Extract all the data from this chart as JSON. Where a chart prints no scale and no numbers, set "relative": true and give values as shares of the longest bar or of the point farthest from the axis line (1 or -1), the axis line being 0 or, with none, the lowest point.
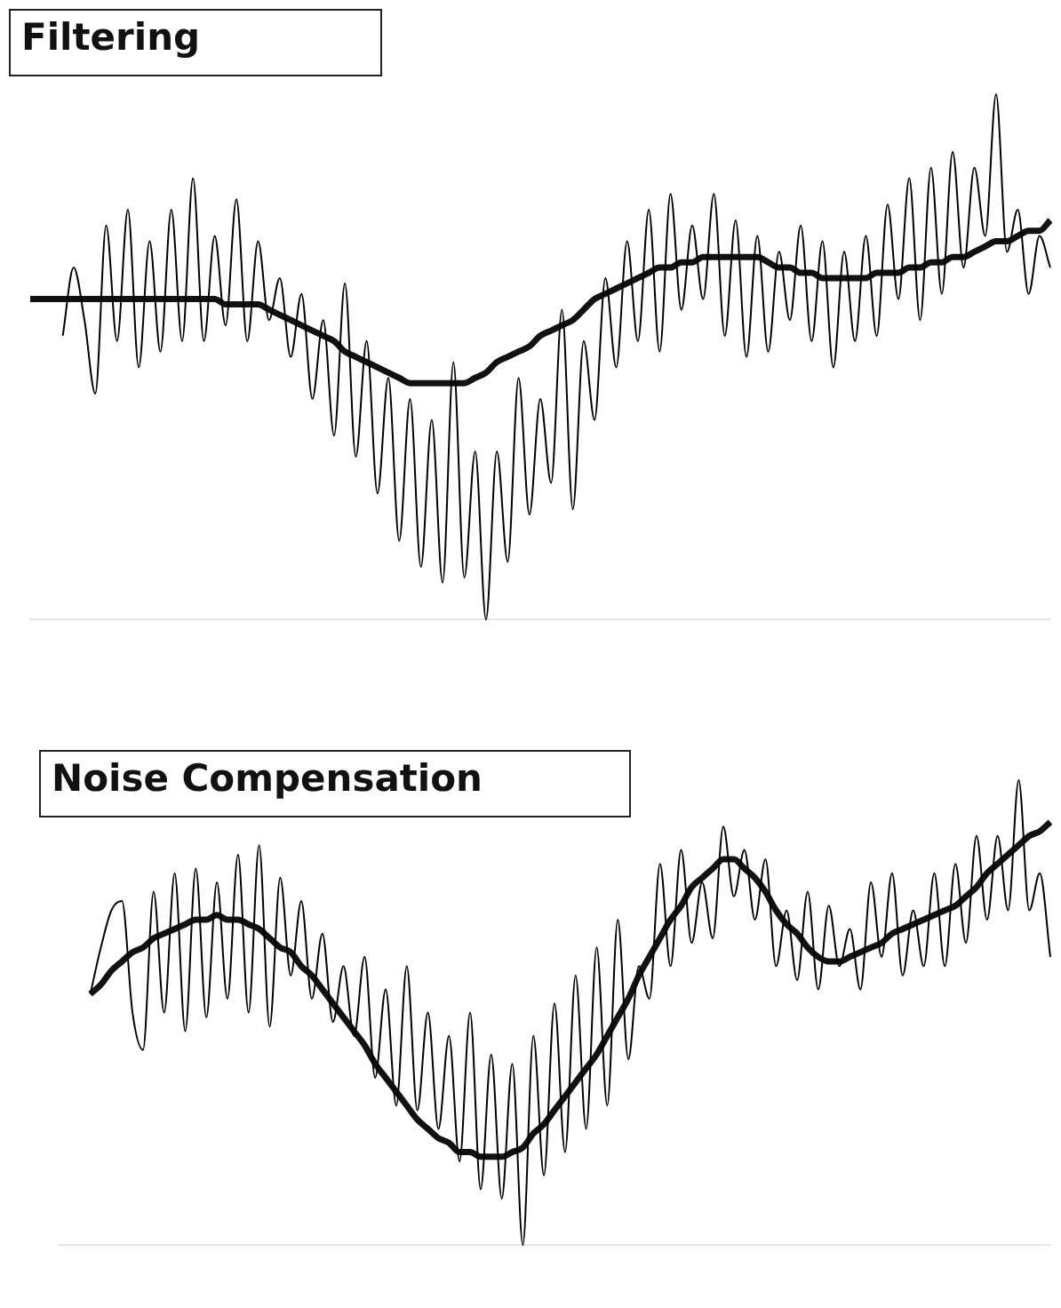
{
  "chart_data": [
    {
      "type": "line",
      "title": "Filtering",
      "relative": true,
      "marker": "none",
      "line_style": "solid",
      "categories": [
        null,
        null,
        null,
        null,
        null,
        null,
        null,
        null,
        null,
        null,
        null,
        null,
        null,
        null,
        null,
        null,
        null,
        null,
        null,
        null,
        null,
        null,
        null,
        null,
        null,
        null,
        null,
        null,
        null,
        null,
        null,
        null,
        null,
        null,
        null,
        null,
        null,
        null,
        null,
        null,
        null,
        null,
        null,
        null,
        null,
        null,
        null,
        null,
        null,
        null,
        null,
        null,
        null,
        null,
        null,
        null,
        null,
        null,
        null,
        null,
        null,
        null,
        null,
        null,
        null,
        null,
        null,
        null,
        null,
        null,
        null,
        null,
        null,
        null,
        null,
        null,
        null,
        null,
        null,
        null,
        null,
        null,
        null,
        null,
        null,
        null,
        null,
        null,
        null,
        null,
        null,
        null,
        null,
        null,
        null
      ],
      "series": [
        {
          "color": "#000000",
          "values": [
            null,
            null,
            null,
            0.54,
            0.67,
            0.57,
            0.43,
            0.75,
            0.53,
            0.78,
            0.48,
            0.72,
            0.51,
            0.78,
            0.53,
            0.84,
            0.53,
            0.73,
            0.56,
            0.8,
            0.53,
            0.72,
            0.57,
            0.65,
            0.5,
            0.62,
            0.42,
            0.57,
            0.35,
            0.64,
            0.31,
            0.53,
            0.24,
            0.46,
            0.15,
            0.42,
            0.1,
            0.38,
            0.07,
            0.49,
            0.08,
            0.32,
            0,
            0.32,
            0.11,
            0.46,
            0.2,
            0.42,
            0.26,
            0.59,
            0.21,
            0.53,
            0.38,
            0.65,
            0.48,
            0.72,
            0.53,
            0.78,
            0.51,
            0.81,
            0.59,
            0.75,
            0.61,
            0.81,
            0.54,
            0.76,
            0.5,
            0.73,
            0.51,
            0.7,
            0.57,
            0.75,
            0.53,
            0.72,
            0.48,
            0.7,
            0.53,
            0.73,
            0.54,
            0.79,
            0.61,
            0.84,
            0.57,
            0.86,
            0.62,
            0.89,
            0.67,
            0.86,
            0.73,
            1,
            0.7,
            0.78,
            0.62,
            0.73,
            0.67
          ]
        },
        {
          "color": "#111111",
          "values": [
            0.61,
            0.61,
            0.61,
            0.61,
            0.61,
            0.61,
            0.61,
            0.61,
            0.61,
            0.61,
            0.61,
            0.61,
            0.61,
            0.61,
            0.61,
            0.61,
            0.61,
            0.61,
            0.6,
            0.6,
            0.6,
            0.6,
            0.59,
            0.58,
            0.57,
            0.56,
            0.55,
            0.54,
            0.53,
            0.51,
            0.5,
            0.49,
            0.48,
            0.47,
            0.46,
            0.45,
            0.45,
            0.45,
            0.45,
            0.45,
            0.45,
            0.46,
            0.47,
            0.49,
            0.5,
            0.51,
            0.52,
            0.54,
            0.55,
            0.56,
            0.57,
            0.59,
            0.61,
            0.62,
            0.63,
            0.64,
            0.65,
            0.66,
            0.67,
            0.67,
            0.68,
            0.68,
            0.69,
            0.69,
            0.69,
            0.69,
            0.69,
            0.69,
            0.68,
            0.67,
            0.67,
            0.66,
            0.66,
            0.65,
            0.65,
            0.65,
            0.65,
            0.65,
            0.66,
            0.66,
            0.66,
            0.67,
            0.67,
            0.68,
            0.68,
            0.69,
            0.69,
            0.7,
            0.71,
            0.72,
            0.72,
            0.73,
            0.74,
            0.74,
            0.76
          ]
        }
      ]
    },
    {
      "type": "line",
      "title": "Noise Compensation",
      "relative": true,
      "marker": "none",
      "line_style": "solid",
      "categories": [
        null,
        null,
        null,
        null,
        null,
        null,
        null,
        null,
        null,
        null,
        null,
        null,
        null,
        null,
        null,
        null,
        null,
        null,
        null,
        null,
        null,
        null,
        null,
        null,
        null,
        null,
        null,
        null,
        null,
        null,
        null,
        null,
        null,
        null,
        null,
        null,
        null,
        null,
        null,
        null,
        null,
        null,
        null,
        null,
        null,
        null,
        null,
        null,
        null,
        null,
        null,
        null,
        null,
        null,
        null,
        null,
        null,
        null,
        null,
        null,
        null,
        null,
        null,
        null,
        null,
        null,
        null,
        null,
        null,
        null,
        null,
        null,
        null,
        null,
        null,
        null,
        null,
        null,
        null,
        null,
        null,
        null,
        null,
        null,
        null,
        null,
        null,
        null,
        null,
        null,
        null,
        null,
        null,
        null,
        null
      ],
      "series": [
        {
          "color": "#000000",
          "values": [
            null,
            null,
            null,
            0.54,
            0.64,
            0.72,
            0.74,
            0.5,
            0.42,
            0.76,
            0.5,
            0.8,
            0.46,
            0.81,
            0.49,
            0.78,
            0.53,
            0.84,
            0.5,
            0.86,
            0.47,
            0.79,
            0.58,
            0.74,
            0.53,
            0.67,
            0.48,
            0.6,
            0.45,
            0.62,
            0.36,
            0.55,
            0.3,
            0.6,
            0.29,
            0.5,
            0.25,
            0.45,
            0.18,
            0.5,
            0.12,
            0.41,
            0.1,
            0.39,
            0,
            0.45,
            0.15,
            0.52,
            0.2,
            0.58,
            0.25,
            0.64,
            0.3,
            0.7,
            0.4,
            0.6,
            0.53,
            0.82,
            0.6,
            0.85,
            0.65,
            0.78,
            0.66,
            0.9,
            0.75,
            0.85,
            0.7,
            0.83,
            0.6,
            0.72,
            0.57,
            0.76,
            0.55,
            0.73,
            0.6,
            0.68,
            0.55,
            0.78,
            0.62,
            0.8,
            0.58,
            0.72,
            0.6,
            0.8,
            0.6,
            0.82,
            0.65,
            0.88,
            0.7,
            0.88,
            0.72,
            1,
            0.72,
            0.8,
            0.62
          ]
        },
        {
          "color": "#111111",
          "values": [
            null,
            null,
            null,
            0.54,
            0.56,
            0.59,
            0.61,
            0.63,
            0.64,
            0.66,
            0.67,
            0.68,
            0.69,
            0.7,
            0.7,
            0.71,
            0.7,
            0.7,
            0.69,
            0.68,
            0.66,
            0.64,
            0.63,
            0.6,
            0.58,
            0.55,
            0.52,
            0.49,
            0.46,
            0.43,
            0.39,
            0.36,
            0.33,
            0.3,
            0.27,
            0.25,
            0.23,
            0.22,
            0.2,
            0.2,
            0.19,
            0.19,
            0.19,
            0.2,
            0.21,
            0.24,
            0.26,
            0.29,
            0.32,
            0.35,
            0.38,
            0.41,
            0.45,
            0.49,
            0.53,
            0.58,
            0.62,
            0.66,
            0.7,
            0.73,
            0.77,
            0.79,
            0.81,
            0.83,
            0.83,
            0.81,
            0.79,
            0.76,
            0.72,
            0.69,
            0.67,
            0.64,
            0.62,
            0.61,
            0.61,
            0.62,
            0.63,
            0.64,
            0.65,
            0.67,
            0.68,
            0.69,
            0.7,
            0.71,
            0.72,
            0.73,
            0.75,
            0.77,
            0.8,
            0.82,
            0.84,
            0.86,
            0.88,
            0.89,
            0.91
          ]
        }
      ]
    }
  ]
}
